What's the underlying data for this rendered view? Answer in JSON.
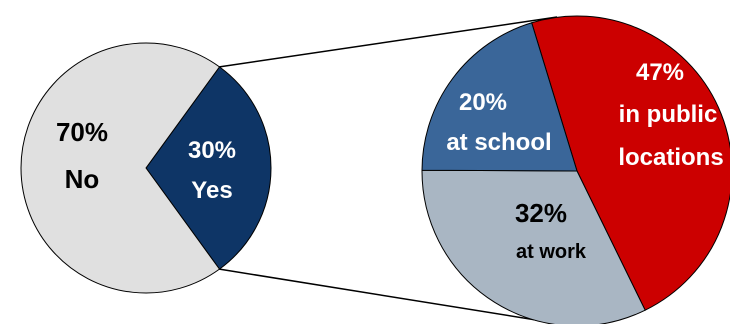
{
  "chart_data": [
    {
      "type": "pie",
      "slices": [
        {
          "pct": "70%",
          "name": "No",
          "value": 70,
          "color": "#e0e0e0"
        },
        {
          "pct": "30%",
          "name": "Yes",
          "value": 30,
          "color": "#0e3566"
        }
      ]
    },
    {
      "type": "pie",
      "slices": [
        {
          "pct": "47%",
          "name": "in public locations",
          "value": 47,
          "color": "#cc0000"
        },
        {
          "pct": "32%",
          "name": "at work",
          "value": 32,
          "color": "#a9b6c3"
        },
        {
          "pct": "20%",
          "name": "at school",
          "value": 20,
          "color": "#3a6699"
        }
      ]
    }
  ],
  "colors": {
    "stroke": "#000000",
    "light_text": "#ffffff",
    "dark_text": "#000000"
  }
}
